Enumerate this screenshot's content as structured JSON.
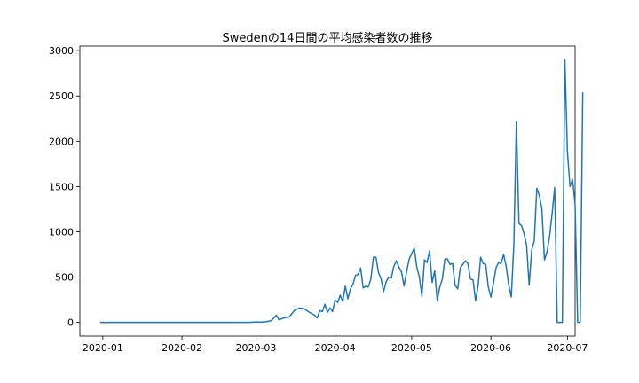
{
  "chart_data": {
    "type": "line",
    "title": "Swedenの14日間の平均感染者数の推移",
    "xlabel": "",
    "ylabel": "",
    "x_tick_labels": [
      "2020-01",
      "2020-02",
      "2020-03",
      "2020-04",
      "2020-05",
      "2020-06",
      "2020-07"
    ],
    "x_tick_dates": [
      "2020-01-01",
      "2020-02-01",
      "2020-03-01",
      "2020-04-01",
      "2020-05-01",
      "2020-06-01",
      "2020-07-01"
    ],
    "xlim": [
      "2019-12-23",
      "2020-07-04"
    ],
    "y_ticks": [
      0,
      500,
      1000,
      1500,
      2000,
      2500,
      3000
    ],
    "ylim": [
      -150,
      3050
    ],
    "grid": false,
    "series": [
      {
        "color": "#1f77b4",
        "points": [
          [
            "2019-12-31",
            0
          ],
          [
            "2020-01-15",
            0
          ],
          [
            "2020-01-31",
            0
          ],
          [
            "2020-02-15",
            0
          ],
          [
            "2020-02-26",
            0
          ],
          [
            "2020-02-28",
            2
          ],
          [
            "2020-03-01",
            5
          ],
          [
            "2020-03-03",
            3
          ],
          [
            "2020-03-05",
            8
          ],
          [
            "2020-03-07",
            20
          ],
          [
            "2020-03-09",
            80
          ],
          [
            "2020-03-10",
            30
          ],
          [
            "2020-03-12",
            50
          ],
          [
            "2020-03-14",
            60
          ],
          [
            "2020-03-16",
            130
          ],
          [
            "2020-03-18",
            160
          ],
          [
            "2020-03-20",
            150
          ],
          [
            "2020-03-22",
            110
          ],
          [
            "2020-03-24",
            80
          ],
          [
            "2020-03-25",
            50
          ],
          [
            "2020-03-26",
            130
          ],
          [
            "2020-03-27",
            120
          ],
          [
            "2020-03-28",
            200
          ],
          [
            "2020-03-29",
            110
          ],
          [
            "2020-03-30",
            160
          ],
          [
            "2020-03-31",
            120
          ],
          [
            "2020-04-01",
            250
          ],
          [
            "2020-04-02",
            220
          ],
          [
            "2020-04-03",
            300
          ],
          [
            "2020-04-04",
            230
          ],
          [
            "2020-04-05",
            400
          ],
          [
            "2020-04-06",
            260
          ],
          [
            "2020-04-07",
            370
          ],
          [
            "2020-04-08",
            420
          ],
          [
            "2020-04-09",
            520
          ],
          [
            "2020-04-10",
            530
          ],
          [
            "2020-04-11",
            600
          ],
          [
            "2020-04-12",
            380
          ],
          [
            "2020-04-13",
            400
          ],
          [
            "2020-04-14",
            390
          ],
          [
            "2020-04-15",
            480
          ],
          [
            "2020-04-16",
            720
          ],
          [
            "2020-04-17",
            720
          ],
          [
            "2020-04-18",
            550
          ],
          [
            "2020-04-19",
            480
          ],
          [
            "2020-04-20",
            340
          ],
          [
            "2020-04-21",
            450
          ],
          [
            "2020-04-22",
            500
          ],
          [
            "2020-04-23",
            490
          ],
          [
            "2020-04-24",
            620
          ],
          [
            "2020-04-25",
            680
          ],
          [
            "2020-04-26",
            610
          ],
          [
            "2020-04-27",
            560
          ],
          [
            "2020-04-28",
            400
          ],
          [
            "2020-04-29",
            560
          ],
          [
            "2020-04-30",
            700
          ],
          [
            "2020-05-01",
            760
          ],
          [
            "2020-05-02",
            820
          ],
          [
            "2020-05-03",
            610
          ],
          [
            "2020-05-04",
            500
          ],
          [
            "2020-05-05",
            290
          ],
          [
            "2020-05-06",
            690
          ],
          [
            "2020-05-07",
            660
          ],
          [
            "2020-05-08",
            790
          ],
          [
            "2020-05-09",
            440
          ],
          [
            "2020-05-10",
            570
          ],
          [
            "2020-05-11",
            240
          ],
          [
            "2020-05-12",
            390
          ],
          [
            "2020-05-13",
            480
          ],
          [
            "2020-05-14",
            700
          ],
          [
            "2020-05-15",
            700
          ],
          [
            "2020-05-16",
            640
          ],
          [
            "2020-05-17",
            650
          ],
          [
            "2020-05-18",
            410
          ],
          [
            "2020-05-19",
            370
          ],
          [
            "2020-05-20",
            600
          ],
          [
            "2020-05-21",
            640
          ],
          [
            "2020-05-22",
            680
          ],
          [
            "2020-05-23",
            650
          ],
          [
            "2020-05-24",
            480
          ],
          [
            "2020-05-25",
            470
          ],
          [
            "2020-05-26",
            240
          ],
          [
            "2020-05-27",
            400
          ],
          [
            "2020-05-28",
            720
          ],
          [
            "2020-05-29",
            650
          ],
          [
            "2020-05-30",
            640
          ],
          [
            "2020-05-31",
            390
          ],
          [
            "2020-06-01",
            280
          ],
          [
            "2020-06-02",
            430
          ],
          [
            "2020-06-03",
            600
          ],
          [
            "2020-06-04",
            660
          ],
          [
            "2020-06-05",
            650
          ],
          [
            "2020-06-06",
            750
          ],
          [
            "2020-06-07",
            620
          ],
          [
            "2020-06-08",
            410
          ],
          [
            "2020-06-09",
            280
          ],
          [
            "2020-06-10",
            850
          ],
          [
            "2020-06-11",
            2220
          ],
          [
            "2020-06-12",
            1090
          ],
          [
            "2020-06-13",
            1070
          ],
          [
            "2020-06-14",
            980
          ],
          [
            "2020-06-15",
            850
          ],
          [
            "2020-06-16",
            410
          ],
          [
            "2020-06-17",
            800
          ],
          [
            "2020-06-18",
            900
          ],
          [
            "2020-06-19",
            1480
          ],
          [
            "2020-06-20",
            1400
          ],
          [
            "2020-06-21",
            1250
          ],
          [
            "2020-06-22",
            690
          ],
          [
            "2020-06-23",
            780
          ],
          [
            "2020-06-24",
            950
          ],
          [
            "2020-06-25",
            1200
          ],
          [
            "2020-06-26",
            1490
          ],
          [
            "2020-06-27",
            0
          ],
          [
            "2020-06-29",
            0
          ],
          [
            "2020-06-30",
            2900
          ],
          [
            "2020-07-01",
            1880
          ],
          [
            "2020-07-02",
            1500
          ],
          [
            "2020-07-03",
            1580
          ],
          [
            "2020-07-04",
            1300
          ],
          [
            "2020-07-05",
            0
          ],
          [
            "2020-07-06",
            0
          ],
          [
            "2020-07-07",
            2540
          ]
        ]
      }
    ]
  }
}
